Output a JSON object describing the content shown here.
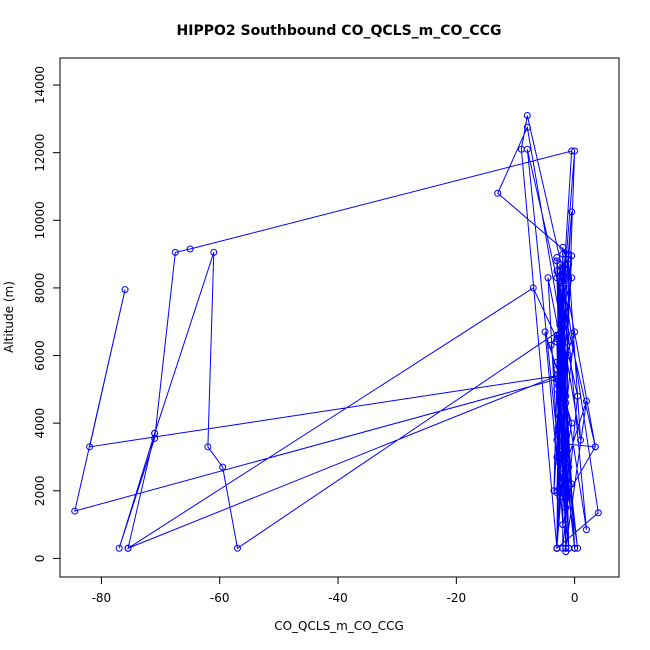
{
  "chart_data": {
    "type": "line",
    "markers": "open-circle",
    "color": "#0000ff",
    "title": "HIPPO2 Southbound CO_QCLS_m_CO_CCG",
    "xlabel": "CO_QCLS_m_CO_CCG",
    "ylabel": "Altitude (m)",
    "xlim": [
      -87,
      7.5
    ],
    "ylim": [
      -550,
      14800
    ],
    "xticks": [
      -80,
      -60,
      -40,
      -20,
      0
    ],
    "yticks": [
      0,
      2000,
      4000,
      6000,
      8000,
      10000,
      12000,
      14000
    ],
    "xtick_labels": [
      "-80",
      "-60",
      "-40",
      "-20",
      "0"
    ],
    "ytick_labels": [
      "0",
      "2000",
      "4000",
      "6000",
      "8000",
      "10000",
      "12000",
      "14000"
    ],
    "grid": false,
    "series": [
      {
        "x": [
          -3.0,
          -9.0,
          -8.0,
          -2.0,
          -1.5,
          -2.5,
          0.0,
          -2.0,
          -3.0,
          -2.5,
          -1.0,
          0.5,
          -2.0,
          -2.0,
          -0.5,
          -3.0,
          -2.5,
          -3.0,
          -2.0,
          -1.5,
          -1.0,
          -13.0,
          -8.0,
          1.0,
          -1.0,
          -3.0,
          -1.0,
          -2.5,
          -1.5,
          -2.0,
          -3.0,
          -2.5,
          -7.0,
          -75.5,
          -71.0,
          -75.5,
          -3.0,
          -82.0,
          -76.0,
          -84.5,
          -3.0,
          -2.0,
          -1.5,
          2.0,
          -3.0,
          -2.5,
          -2.0,
          -1.0,
          3.5,
          -8.0,
          -1.0,
          -2.0,
          4.0,
          -3.0,
          -0.5,
          -1.5,
          -3.0,
          -2.0,
          0.0,
          -2.5,
          -2.0,
          -3.0,
          -1.5,
          -4.0,
          -2.0,
          -0.5,
          -3.5,
          -3.0,
          0.0,
          -2.5,
          -3.0,
          -1.0,
          0.5,
          -2.0,
          -3.0,
          -1.5,
          -0.5,
          -2.5,
          -3.0,
          -2.0,
          -1.5,
          -2.5,
          -3.0,
          -2.0,
          -3.0,
          -2.5,
          3.5,
          -2.0,
          -1.5,
          -2.0,
          -3.0,
          -2.5,
          -3.0,
          -2.0,
          -1.5,
          2.0,
          -2.0,
          -3.0,
          -5.0,
          -2.5,
          -4.5,
          -2.0,
          -3.0,
          -2.0,
          -0.5,
          -3.0,
          0.0,
          -2.5,
          -3.0,
          -0.5,
          -65.0,
          -67.5,
          -71.0,
          -77.0,
          -71.0,
          -61.0,
          -62.0,
          -59.5,
          -57.0,
          -2.0,
          -1.5
        ],
        "y": [
          300,
          12100,
          13100,
          8500,
          9000,
          6500,
          12050,
          2500,
          300,
          8700,
          6000,
          4800,
          300,
          9200,
          8300,
          5400,
          2000,
          6600,
          3300,
          300,
          9000,
          10800,
          12750,
          3500,
          8700,
          8300,
          300,
          8500,
          1000,
          7500,
          3000,
          6300,
          8000,
          300,
          3700,
          300,
          5400,
          3300,
          7950,
          1400,
          5300,
          8200,
          300,
          4650,
          1950,
          5200,
          9000,
          1950,
          3300,
          12100,
          300,
          8300,
          1350,
          300,
          8950,
          6400,
          3800,
          7000,
          300,
          4200,
          6000,
          8500,
          3000,
          6300,
          7000,
          10250,
          2000,
          5200,
          6700,
          2800,
          6400,
          2700,
          300,
          3500,
          2000,
          4600,
          4000,
          1950,
          300,
          8000,
          1900,
          6900,
          5800,
          3100,
          8800,
          3400,
          3300,
          8600,
          1500,
          2400,
          6500,
          1800,
          300,
          7200,
          4800,
          850,
          8400,
          5600,
          6700,
          2000,
          8300,
          6100,
          3500,
          1000,
          2200,
          8900,
          300,
          4600,
          5000,
          12050,
          9150,
          9050,
          3550,
          300,
          3700,
          9050,
          3300,
          2700,
          300,
          6800,
          200
        ]
      }
    ]
  }
}
